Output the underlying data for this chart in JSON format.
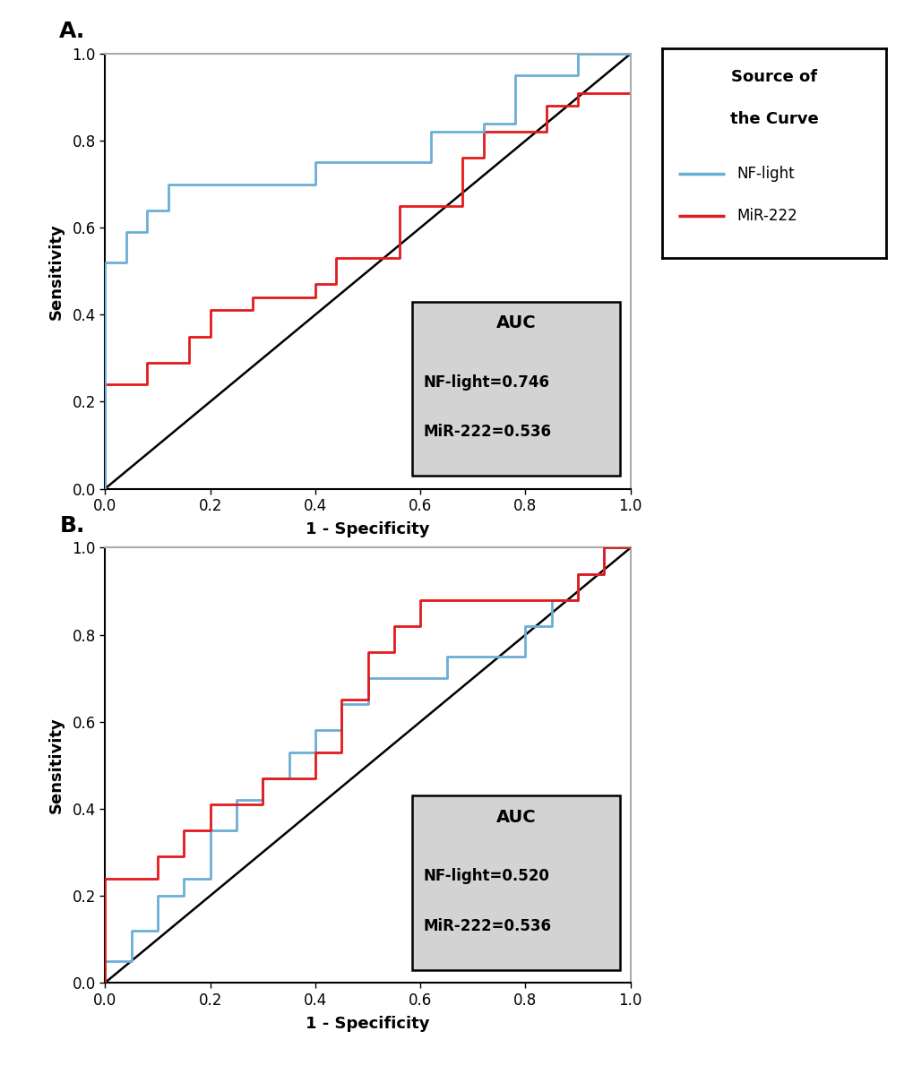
{
  "panel_A": {
    "title": "A.",
    "nf_light_x": [
      0.0,
      0.0,
      0.04,
      0.04,
      0.08,
      0.08,
      0.12,
      0.12,
      0.16,
      0.16,
      0.2,
      0.2,
      0.24,
      0.24,
      0.28,
      0.28,
      0.32,
      0.32,
      0.36,
      0.36,
      0.4,
      0.4,
      0.44,
      0.44,
      0.5,
      0.5,
      0.56,
      0.56,
      0.62,
      0.62,
      0.68,
      0.68,
      0.72,
      0.72,
      0.78,
      0.78,
      0.84,
      0.84,
      0.9,
      0.9,
      0.96,
      0.96,
      1.0
    ],
    "nf_light_y": [
      0.0,
      0.52,
      0.52,
      0.59,
      0.59,
      0.64,
      0.64,
      0.7,
      0.7,
      0.7,
      0.7,
      0.7,
      0.7,
      0.7,
      0.7,
      0.7,
      0.7,
      0.7,
      0.7,
      0.7,
      0.7,
      0.75,
      0.75,
      0.75,
      0.75,
      0.75,
      0.75,
      0.75,
      0.75,
      0.82,
      0.82,
      0.82,
      0.82,
      0.84,
      0.84,
      0.95,
      0.95,
      0.95,
      0.95,
      1.0,
      1.0,
      1.0,
      1.0
    ],
    "mir222_x": [
      0.0,
      0.0,
      0.04,
      0.04,
      0.08,
      0.08,
      0.12,
      0.12,
      0.16,
      0.16,
      0.2,
      0.2,
      0.24,
      0.24,
      0.28,
      0.28,
      0.32,
      0.32,
      0.36,
      0.36,
      0.4,
      0.4,
      0.44,
      0.44,
      0.5,
      0.5,
      0.56,
      0.56,
      0.62,
      0.62,
      0.68,
      0.68,
      0.72,
      0.72,
      0.78,
      0.78,
      0.84,
      0.84,
      0.9,
      0.9,
      0.96,
      0.96,
      1.0
    ],
    "mir222_y": [
      0.0,
      0.24,
      0.24,
      0.24,
      0.24,
      0.29,
      0.29,
      0.29,
      0.29,
      0.35,
      0.35,
      0.41,
      0.41,
      0.41,
      0.41,
      0.44,
      0.44,
      0.44,
      0.44,
      0.44,
      0.44,
      0.47,
      0.47,
      0.53,
      0.53,
      0.53,
      0.53,
      0.65,
      0.65,
      0.65,
      0.65,
      0.76,
      0.76,
      0.82,
      0.82,
      0.82,
      0.82,
      0.88,
      0.88,
      0.91,
      0.91,
      0.91,
      1.0
    ],
    "auc_nflight": "0.746",
    "auc_mir222": "0.536"
  },
  "panel_B": {
    "title": "B.",
    "nf_light_x": [
      0.0,
      0.0,
      0.05,
      0.05,
      0.1,
      0.1,
      0.15,
      0.15,
      0.2,
      0.2,
      0.25,
      0.25,
      0.3,
      0.3,
      0.35,
      0.35,
      0.4,
      0.4,
      0.45,
      0.45,
      0.5,
      0.5,
      0.55,
      0.55,
      0.6,
      0.6,
      0.65,
      0.65,
      0.7,
      0.7,
      0.75,
      0.75,
      0.8,
      0.8,
      0.85,
      0.85,
      0.9,
      0.9,
      0.95,
      0.95,
      1.0
    ],
    "nf_light_y": [
      0.0,
      0.05,
      0.05,
      0.12,
      0.12,
      0.2,
      0.2,
      0.24,
      0.24,
      0.35,
      0.35,
      0.42,
      0.42,
      0.47,
      0.47,
      0.53,
      0.53,
      0.58,
      0.58,
      0.64,
      0.64,
      0.7,
      0.7,
      0.7,
      0.7,
      0.7,
      0.7,
      0.75,
      0.75,
      0.75,
      0.75,
      0.75,
      0.75,
      0.82,
      0.82,
      0.88,
      0.88,
      0.94,
      0.94,
      1.0,
      1.0
    ],
    "mir222_x": [
      0.0,
      0.0,
      0.05,
      0.05,
      0.1,
      0.1,
      0.15,
      0.15,
      0.2,
      0.2,
      0.25,
      0.25,
      0.3,
      0.3,
      0.35,
      0.35,
      0.4,
      0.4,
      0.45,
      0.45,
      0.5,
      0.5,
      0.55,
      0.55,
      0.6,
      0.6,
      0.65,
      0.65,
      0.7,
      0.7,
      0.75,
      0.75,
      0.8,
      0.8,
      0.85,
      0.85,
      0.9,
      0.9,
      0.95,
      0.95,
      1.0
    ],
    "mir222_y": [
      0.0,
      0.24,
      0.24,
      0.24,
      0.24,
      0.29,
      0.29,
      0.35,
      0.35,
      0.41,
      0.41,
      0.41,
      0.41,
      0.47,
      0.47,
      0.47,
      0.47,
      0.53,
      0.53,
      0.65,
      0.65,
      0.76,
      0.76,
      0.82,
      0.82,
      0.88,
      0.88,
      0.88,
      0.88,
      0.88,
      0.88,
      0.88,
      0.88,
      0.88,
      0.88,
      0.88,
      0.88,
      0.94,
      0.94,
      1.0,
      1.0
    ],
    "auc_nflight": "0.520",
    "auc_mir222": "0.536"
  },
  "nf_light_color": "#6BAED6",
  "mir222_color": "#E31A1C",
  "diagonal_color": "#000000",
  "legend_line1": "Source of",
  "legend_line2": "the Curve",
  "legend_nflight": "NF-light",
  "legend_mir222": "MiR-222",
  "xlabel": "1 - Specificity",
  "ylabel": "Sensitivity",
  "xlim": [
    0.0,
    1.0
  ],
  "ylim": [
    0.0,
    1.0
  ],
  "xticks": [
    0.0,
    0.2,
    0.4,
    0.6,
    0.8,
    1.0
  ],
  "yticks": [
    0.0,
    0.2,
    0.4,
    0.6,
    0.8,
    1.0
  ],
  "background_color": "#ffffff",
  "top_spine_color": "#aaaaaa",
  "right_spine_color": "#aaaaaa"
}
